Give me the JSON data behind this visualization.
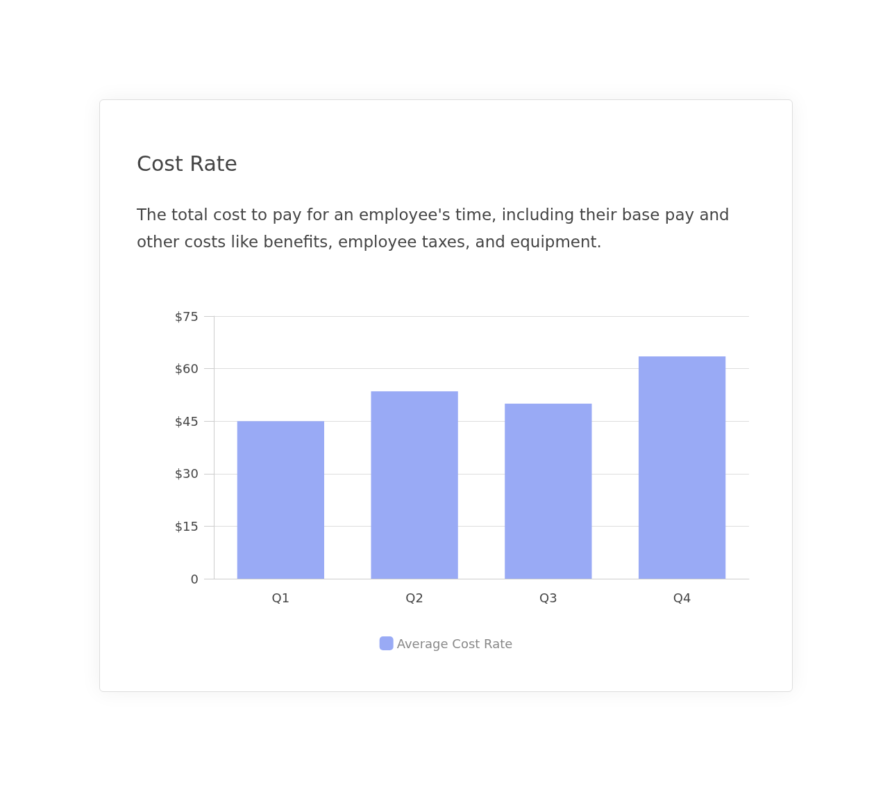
{
  "chart_data": {
    "type": "bar",
    "title": "Cost Rate",
    "subtitle": "The total cost to pay for an employee's time, including their base pay and other costs like benefits, employee taxes, and equipment.",
    "categories": [
      "Q1",
      "Q2",
      "Q3",
      "Q4"
    ],
    "series": [
      {
        "name": "Average Cost Rate",
        "color": "#99aaf5",
        "values": [
          45,
          53.5,
          50,
          63.5
        ]
      }
    ],
    "ylim": [
      0,
      75
    ],
    "yticks": [
      0,
      {
        "value": 15,
        "label": "$15"
      },
      {
        "value": 30,
        "label": "$30"
      },
      {
        "value": 45,
        "label": "$45"
      },
      {
        "value": 60,
        "label": "$60"
      },
      {
        "value": 75,
        "label": "$75"
      }
    ],
    "grid": "y",
    "legend": "bottom"
  }
}
